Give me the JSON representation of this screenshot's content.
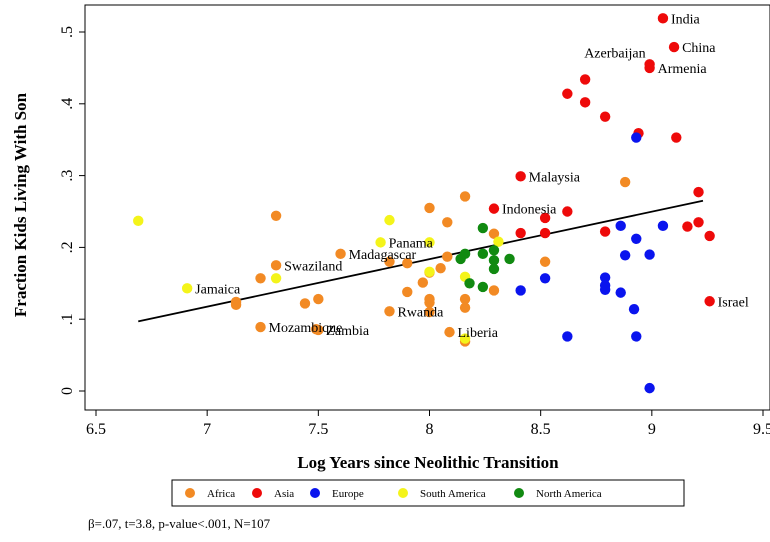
{
  "colors": {
    "Africa": "#f28a24",
    "Asia": "#ee0a0a",
    "Europe": "#0a14ee",
    "South America": "#f4f41a",
    "North America": "#118a11",
    "fit_line": "#000000"
  },
  "footnote": "β=.07, t=3.8, p-value<.001, N=107",
  "chart_data": {
    "type": "scatter",
    "title": "",
    "xlabel": "Log Years since Neolithic Transition",
    "ylabel": "Fraction Kids Living With Son",
    "xlim": [
      6.5,
      9.5
    ],
    "ylim": [
      0,
      0.5
    ],
    "xticks": [
      6.5,
      7,
      7.5,
      8,
      8.5,
      9,
      9.5
    ],
    "xtick_labels": [
      "6.5",
      "7",
      "7.5",
      "8",
      "8.5",
      "9",
      "9.5"
    ],
    "yticks": [
      0,
      0.1,
      0.2,
      0.3,
      0.4,
      0.5
    ],
    "ytick_labels": [
      "0",
      ".1",
      ".2",
      ".3",
      ".4",
      ".5"
    ],
    "grid": false,
    "legend_position": "bottom",
    "fit_line": {
      "x": [
        6.69,
        9.23
      ],
      "y": [
        0.097,
        0.265
      ]
    },
    "series": [
      {
        "name": "Africa",
        "points": [
          [
            7.31,
            0.244
          ],
          [
            7.13,
            0.124
          ],
          [
            7.13,
            0.12
          ],
          [
            7.24,
            0.157
          ],
          [
            7.31,
            0.175
          ],
          [
            7.24,
            0.089
          ],
          [
            7.44,
            0.122
          ],
          [
            7.5,
            0.128
          ],
          [
            7.49,
            0.086
          ],
          [
            7.5,
            0.085
          ],
          [
            7.6,
            0.191
          ],
          [
            7.82,
            0.18
          ],
          [
            7.82,
            0.111
          ],
          [
            7.9,
            0.138
          ],
          [
            7.9,
            0.178
          ],
          [
            7.97,
            0.151
          ],
          [
            8.0,
            0.255
          ],
          [
            8.0,
            0.165
          ],
          [
            8.0,
            0.128
          ],
          [
            8.0,
            0.123
          ],
          [
            8.0,
            0.11
          ],
          [
            8.05,
            0.171
          ],
          [
            8.08,
            0.235
          ],
          [
            8.08,
            0.187
          ],
          [
            8.09,
            0.082
          ],
          [
            8.16,
            0.271
          ],
          [
            8.16,
            0.128
          ],
          [
            8.16,
            0.116
          ],
          [
            8.16,
            0.069
          ],
          [
            8.29,
            0.219
          ],
          [
            8.29,
            0.14
          ],
          [
            8.52,
            0.18
          ],
          [
            8.88,
            0.291
          ]
        ]
      },
      {
        "name": "Asia",
        "points": [
          [
            9.05,
            0.519
          ],
          [
            9.1,
            0.479
          ],
          [
            8.99,
            0.455
          ],
          [
            8.99,
            0.45
          ],
          [
            8.7,
            0.434
          ],
          [
            8.62,
            0.414
          ],
          [
            8.7,
            0.402
          ],
          [
            8.79,
            0.382
          ],
          [
            8.94,
            0.359
          ],
          [
            9.11,
            0.353
          ],
          [
            8.41,
            0.299
          ],
          [
            9.21,
            0.277
          ],
          [
            8.29,
            0.254
          ],
          [
            8.62,
            0.25
          ],
          [
            8.52,
            0.241
          ],
          [
            9.21,
            0.235
          ],
          [
            9.16,
            0.229
          ],
          [
            8.79,
            0.222
          ],
          [
            8.41,
            0.22
          ],
          [
            8.52,
            0.22
          ],
          [
            9.26,
            0.216
          ],
          [
            9.26,
            0.125
          ]
        ]
      },
      {
        "name": "Europe",
        "points": [
          [
            8.93,
            0.353
          ],
          [
            8.86,
            0.23
          ],
          [
            9.05,
            0.23
          ],
          [
            8.93,
            0.212
          ],
          [
            8.88,
            0.189
          ],
          [
            8.99,
            0.19
          ],
          [
            8.79,
            0.158
          ],
          [
            8.79,
            0.147
          ],
          [
            8.79,
            0.141
          ],
          [
            8.86,
            0.137
          ],
          [
            8.52,
            0.157
          ],
          [
            8.41,
            0.14
          ],
          [
            8.92,
            0.114
          ],
          [
            8.62,
            0.076
          ],
          [
            8.93,
            0.076
          ],
          [
            8.99,
            0.004
          ]
        ]
      },
      {
        "name": "South America",
        "points": [
          [
            6.69,
            0.237
          ],
          [
            6.91,
            0.143
          ],
          [
            7.31,
            0.157
          ],
          [
            7.78,
            0.207
          ],
          [
            7.82,
            0.238
          ],
          [
            8.0,
            0.207
          ],
          [
            8.0,
            0.166
          ],
          [
            8.16,
            0.159
          ],
          [
            8.16,
            0.073
          ],
          [
            8.31,
            0.208
          ]
        ]
      },
      {
        "name": "North America",
        "points": [
          [
            8.14,
            0.184
          ],
          [
            8.16,
            0.191
          ],
          [
            8.18,
            0.15
          ],
          [
            8.24,
            0.227
          ],
          [
            8.24,
            0.191
          ],
          [
            8.24,
            0.145
          ],
          [
            8.29,
            0.196
          ],
          [
            8.29,
            0.182
          ],
          [
            8.29,
            0.17
          ],
          [
            8.36,
            0.184
          ]
        ]
      }
    ],
    "annotations": [
      {
        "text": "India",
        "x": 9.05,
        "y": 0.519
      },
      {
        "text": "China",
        "x": 9.1,
        "y": 0.479
      },
      {
        "text": "Azerbaijan",
        "x": 8.99,
        "y": 0.455,
        "anchor": "end"
      },
      {
        "text": "Armenia",
        "x": 8.99,
        "y": 0.45
      },
      {
        "text": "Malaysia",
        "x": 8.41,
        "y": 0.299
      },
      {
        "text": "Indonesia",
        "x": 8.29,
        "y": 0.254
      },
      {
        "text": "Panama",
        "x": 7.78,
        "y": 0.207
      },
      {
        "text": "Madagascar",
        "x": 7.6,
        "y": 0.191
      },
      {
        "text": "Swaziland",
        "x": 7.31,
        "y": 0.175
      },
      {
        "text": "Jamaica",
        "x": 6.91,
        "y": 0.143
      },
      {
        "text": "Rwanda",
        "x": 7.82,
        "y": 0.111
      },
      {
        "text": "Mozambique",
        "x": 7.24,
        "y": 0.089
      },
      {
        "text": "Zambia",
        "x": 7.5,
        "y": 0.085
      },
      {
        "text": "Liberia",
        "x": 8.09,
        "y": 0.082
      },
      {
        "text": "Israel",
        "x": 9.26,
        "y": 0.125
      }
    ]
  }
}
